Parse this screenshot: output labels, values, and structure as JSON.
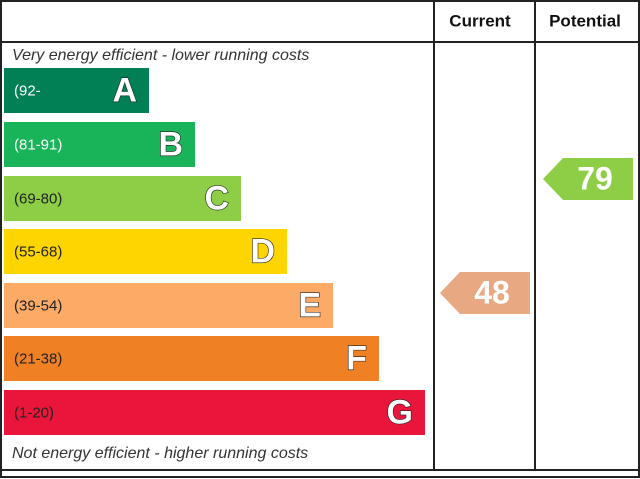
{
  "header": {
    "current": "Current",
    "potential": "Potential"
  },
  "top_note": "Very energy efficient - lower running costs",
  "bottom_note": "Not energy efficient - higher running costs",
  "bands": [
    {
      "range": "(92-",
      "letter": "A",
      "color": "#008054"
    },
    {
      "range": "(81-91)",
      "letter": "B",
      "color": "#19b459"
    },
    {
      "range": "(69-80)",
      "letter": "C",
      "color": "#8dce46"
    },
    {
      "range": "(55-68)",
      "letter": "D",
      "color": "#ffd500"
    },
    {
      "range": "(39-54)",
      "letter": "E",
      "color": "#fcaa65"
    },
    {
      "range": "(21-38)",
      "letter": "F",
      "color": "#ef8023"
    },
    {
      "range": "(1-20)",
      "letter": "G",
      "color": "#e9153b"
    }
  ],
  "current": {
    "value": 48,
    "color": "#e8a882"
  },
  "potential": {
    "value": 79,
    "color": "#8dce46"
  }
}
